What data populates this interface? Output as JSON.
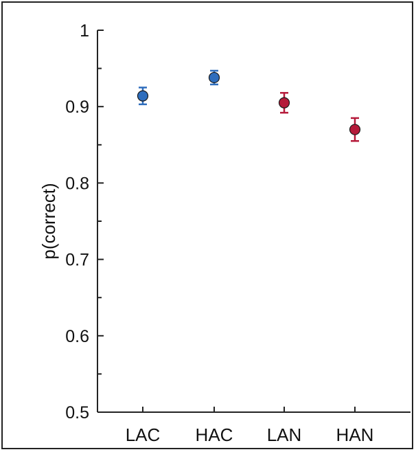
{
  "chart_data": {
    "type": "scatter",
    "subtype": "point-with-error-bars",
    "title": "",
    "xlabel": "",
    "ylabel": "p(correct)",
    "ylim": [
      0.5,
      1.0
    ],
    "yticks": [
      0.5,
      0.6,
      0.7,
      0.8,
      0.9,
      1.0
    ],
    "ytick_labels": [
      "0.5",
      "0.6",
      "0.7",
      "0.8",
      "0.9",
      "1"
    ],
    "minor_ytick_step": 0.05,
    "categories": [
      "LAC",
      "HAC",
      "LAN",
      "HAN"
    ],
    "values": [
      0.914,
      0.938,
      0.905,
      0.87
    ],
    "errors": [
      0.011,
      0.009,
      0.013,
      0.015
    ],
    "colors": [
      "#2e6dbc",
      "#2e6dbc",
      "#b51a3a",
      "#b51a3a"
    ],
    "grid": false,
    "legend": "none"
  }
}
